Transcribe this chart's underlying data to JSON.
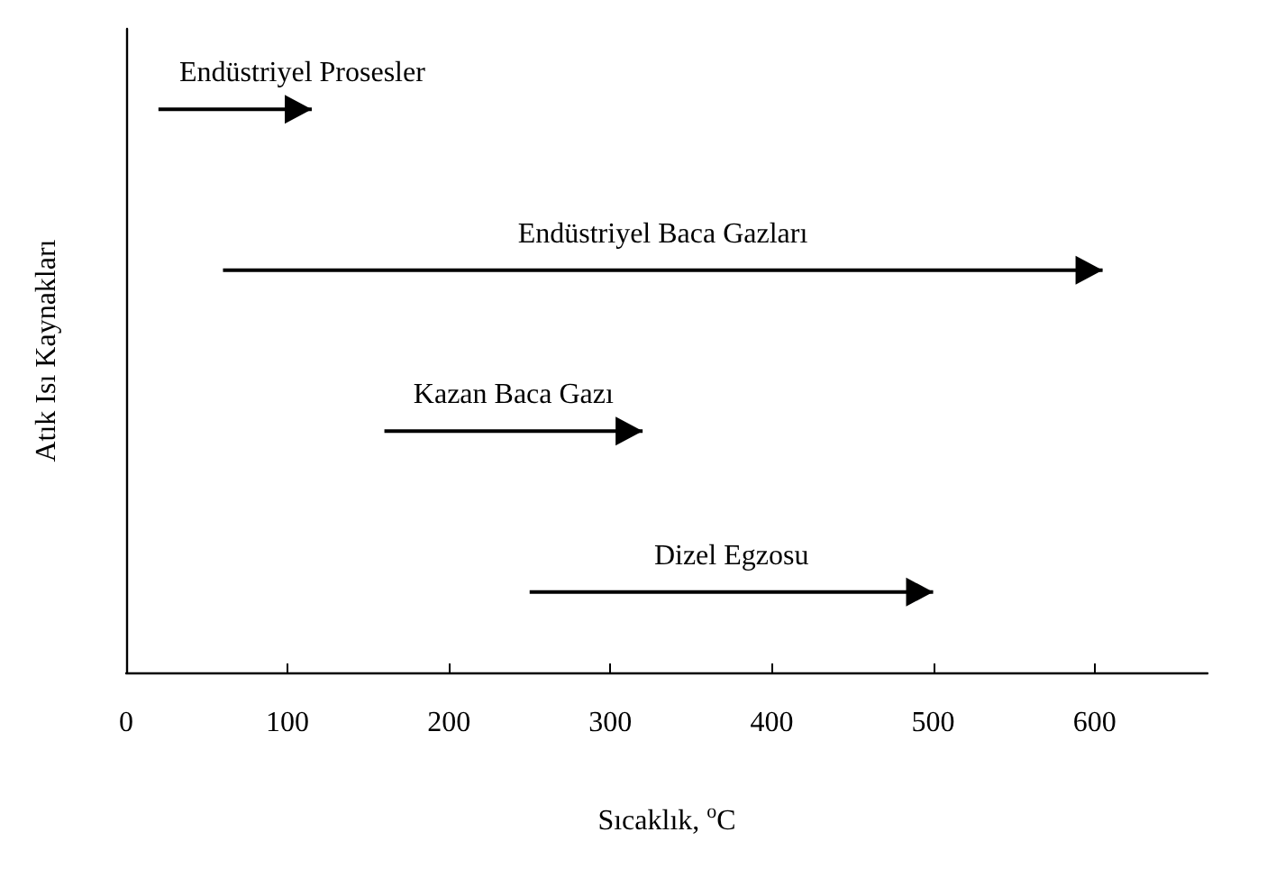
{
  "chart_data": {
    "type": "bar",
    "orientation": "horizontal",
    "xlabel": "Sıcaklık, $^{o}$C",
    "ylabel": "Atık Isı Kaynakları",
    "categories": [
      "Endüstriyel Prosesler",
      "Endüstriyel Baca Gazları",
      "Kazan Baca Gazı",
      "Dizel Egzosu"
    ],
    "base": [
      20,
      60,
      160,
      250
    ],
    "values": [
      95,
      545,
      160,
      250
    ],
    "color": "#000000",
    "xlim": [
      0,
      670
    ],
    "xticks": [
      0,
      100,
      200,
      300,
      400,
      500,
      600
    ],
    "tick_labels": "x"
  }
}
